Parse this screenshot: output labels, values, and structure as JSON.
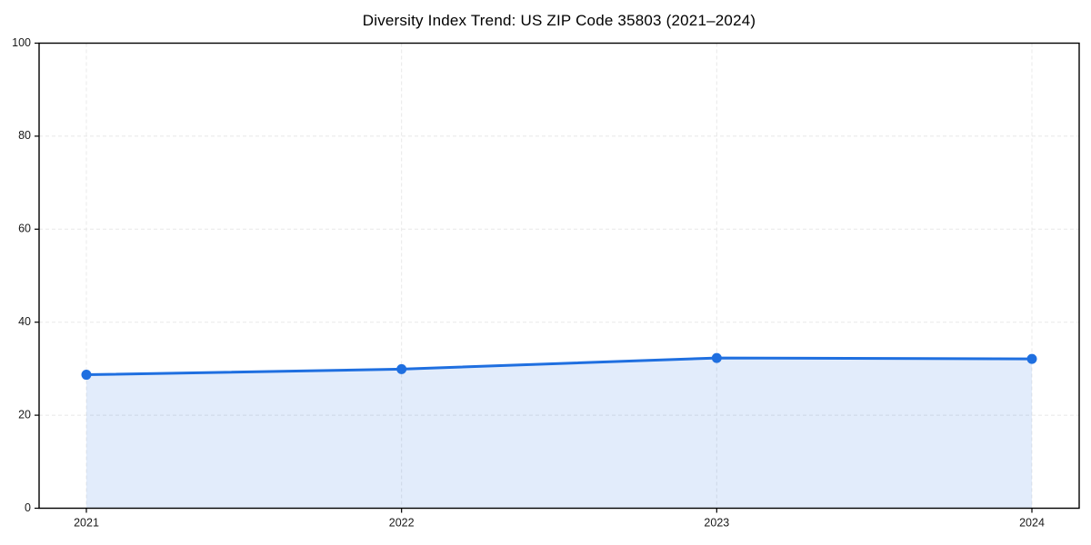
{
  "chart_data": {
    "type": "area",
    "title": "Diversity Index Trend: US ZIP Code 35803 (2021–2024)",
    "x": [
      2021,
      2022,
      2023,
      2024
    ],
    "xtick_labels": [
      "2021",
      "2022",
      "2023",
      "2024"
    ],
    "series": [
      {
        "name": "Diversity Index",
        "values": [
          28.7,
          29.9,
          32.3,
          32.1
        ]
      }
    ],
    "xlabel": "",
    "ylabel": "",
    "ylim": [
      0,
      100
    ],
    "yticks": [
      0,
      20,
      40,
      60,
      80,
      100
    ],
    "grid": true,
    "grid_style": "dashed",
    "legend": "none",
    "line_color": "#1f6fe0",
    "fill_color": "rgba(31,111,224,0.13)",
    "marker": "circle"
  }
}
